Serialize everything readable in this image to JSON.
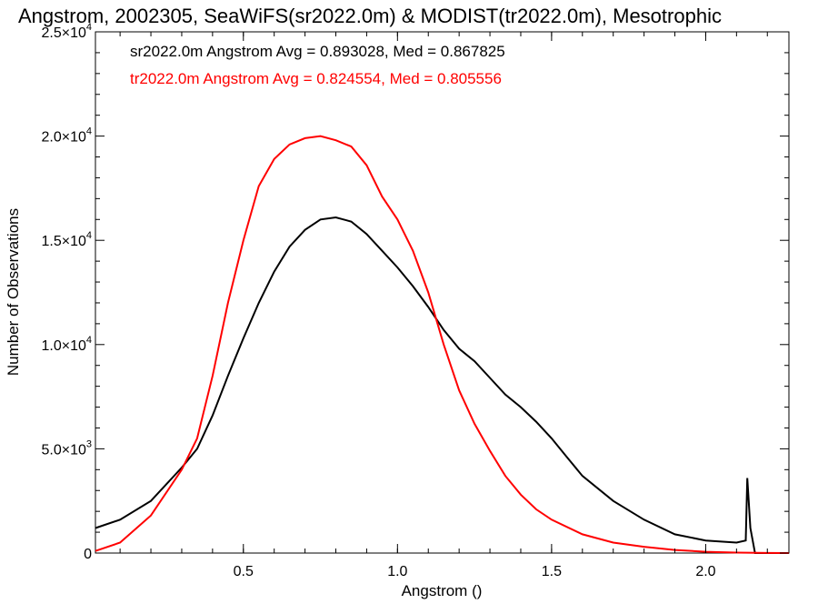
{
  "chart_data": {
    "type": "line",
    "title": "Angstrom, 2002305, SeaWiFS(sr2022.0m) & MODIST(tr2022.0m), Mesotrophic",
    "xlabel": "Angstrom ()",
    "ylabel": "Number of Observations",
    "xlim": [
      0.02,
      2.27
    ],
    "ylim": [
      0,
      25000
    ],
    "x_ticks": [
      {
        "value": 0.5,
        "label": "0.5"
      },
      {
        "value": 1.0,
        "label": "1.0"
      },
      {
        "value": 1.5,
        "label": "1.5"
      },
      {
        "value": 2.0,
        "label": "2.0"
      }
    ],
    "y_ticks": [
      {
        "value": 0,
        "mant": "0",
        "exp": ""
      },
      {
        "value": 5000,
        "mant": "5.0×10",
        "exp": "3"
      },
      {
        "value": 10000,
        "mant": "1.0×10",
        "exp": "4"
      },
      {
        "value": 15000,
        "mant": "1.5×10",
        "exp": "4"
      },
      {
        "value": 20000,
        "mant": "2.0×10",
        "exp": "4"
      },
      {
        "value": 25000,
        "mant": "2.5×10",
        "exp": "4"
      }
    ],
    "annotations": [
      {
        "text": "sr2022.0m Angstrom Avg = 0.893028, Med = 0.867825",
        "color": "#000000"
      },
      {
        "text": "tr2022.0m Angstrom Avg = 0.824554, Med = 0.805556",
        "color": "#ff0000"
      }
    ],
    "series": [
      {
        "color": "#000000",
        "x": [
          0.02,
          0.1,
          0.2,
          0.3,
          0.35,
          0.4,
          0.45,
          0.5,
          0.55,
          0.6,
          0.65,
          0.7,
          0.75,
          0.8,
          0.85,
          0.9,
          0.95,
          1.0,
          1.05,
          1.1,
          1.15,
          1.2,
          1.25,
          1.3,
          1.35,
          1.4,
          1.45,
          1.5,
          1.55,
          1.6,
          1.7,
          1.8,
          1.9,
          2.0,
          2.1,
          2.13,
          2.135,
          2.145,
          2.15,
          2.16,
          2.2,
          2.27
        ],
        "values": [
          1200,
          1600,
          2500,
          4100,
          5000,
          6600,
          8500,
          10300,
          12000,
          13500,
          14700,
          15500,
          16000,
          16100,
          15900,
          15300,
          14500,
          13700,
          12800,
          11800,
          10700,
          9800,
          9200,
          8400,
          7600,
          7000,
          6300,
          5500,
          4600,
          3700,
          2500,
          1600,
          900,
          600,
          500,
          600,
          3600,
          1200,
          800,
          0,
          0,
          0
        ]
      },
      {
        "color": "#ff0000",
        "x": [
          0.02,
          0.1,
          0.2,
          0.3,
          0.35,
          0.4,
          0.45,
          0.5,
          0.55,
          0.6,
          0.65,
          0.7,
          0.75,
          0.8,
          0.85,
          0.9,
          0.95,
          1.0,
          1.05,
          1.1,
          1.15,
          1.2,
          1.25,
          1.3,
          1.35,
          1.4,
          1.45,
          1.5,
          1.6,
          1.7,
          1.8,
          1.9,
          2.0,
          2.1,
          2.2,
          2.27
        ],
        "values": [
          100,
          500,
          1800,
          4000,
          5500,
          8500,
          12000,
          15000,
          17600,
          18900,
          19600,
          19900,
          20000,
          19800,
          19500,
          18600,
          17100,
          16000,
          14500,
          12500,
          10000,
          7800,
          6200,
          4900,
          3700,
          2800,
          2100,
          1600,
          900,
          500,
          300,
          150,
          60,
          20,
          5,
          0
        ]
      }
    ]
  }
}
